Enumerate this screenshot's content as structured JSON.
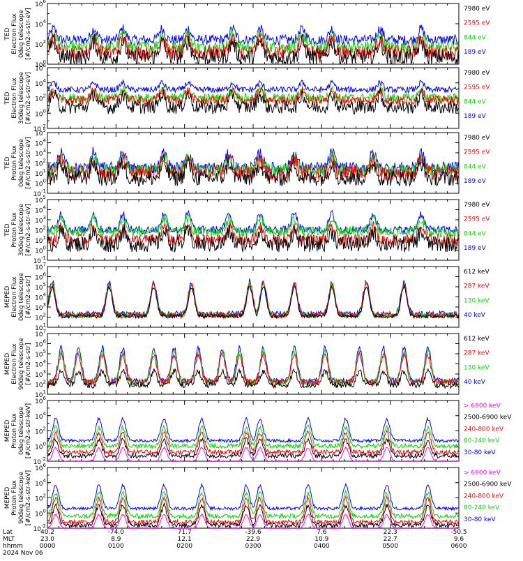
{
  "panel_count": 8,
  "footer": {
    "row_labels": [
      "Lat",
      "MLT",
      "hhmm"
    ],
    "date": "2024 Nov 06",
    "ticks": [
      {
        "lat": "40.2",
        "mlt": "23.0",
        "hhmm": "0000"
      },
      {
        "lat": "-74.0",
        "mlt": "8.9",
        "hhmm": "0100"
      },
      {
        "lat": "71.7",
        "mlt": "12.1",
        "hhmm": "0200"
      },
      {
        "lat": "-39.6",
        "mlt": "22.9",
        "hhmm": "0300"
      },
      {
        "lat": "7.6",
        "mlt": "10.9",
        "hhmm": "0400"
      },
      {
        "lat": "22.3",
        "mlt": "22.7",
        "hhmm": "0500"
      },
      {
        "lat": "-50.5",
        "mlt": "9.6",
        "hhmm": "0600"
      }
    ]
  },
  "colors": {
    "blue": "#0000ff",
    "red": "#ff0000",
    "green": "#00dd00",
    "black": "#000000",
    "magenta": "#ff00ff"
  },
  "chart_data": [
    {
      "type": "line",
      "instrument": "TED",
      "ylabel": [
        "TED",
        "Electron Flux",
        "0deg telescope",
        "[#/cm2-s-str-eV]"
      ],
      "ylog": true,
      "ylim_exp": [
        0,
        6
      ],
      "yticks": [
        {
          "exp": 0,
          "label": "10^0"
        },
        {
          "exp": 2,
          "label": "10^2"
        },
        {
          "exp": 4,
          "label": "10^4"
        },
        {
          "exp": 6,
          "label": "10^6"
        }
      ],
      "legend": [
        {
          "label": "7980 eV",
          "color": "black"
        },
        {
          "label": "2595 eV",
          "color": "red"
        },
        {
          "label": "844 eV",
          "color": "green"
        },
        {
          "label": "189 eV",
          "color": "blue"
        }
      ],
      "series": [
        {
          "name": "189 eV",
          "color": "blue",
          "base": 2.4,
          "level": 3.5,
          "noise": 0.5
        },
        {
          "name": "844 eV",
          "color": "green",
          "base": 1.7,
          "level": 3.0,
          "noise": 0.6
        },
        {
          "name": "2595 eV",
          "color": "red",
          "base": 1.2,
          "level": 2.6,
          "noise": 0.7
        },
        {
          "name": "7980 eV",
          "color": "black",
          "base": 0.7,
          "level": 2.2,
          "noise": 0.8
        }
      ],
      "peaks_hours": [
        0.09,
        0.68,
        1.1,
        1.67,
        2.05,
        2.7,
        3.1,
        3.72,
        4.15,
        4.85,
        5.45
      ]
    },
    {
      "type": "line",
      "instrument": "TED",
      "ylabel": [
        "TED",
        "Electron Flux",
        "30deg telescope",
        "[#/cm2-s-str-eV]"
      ],
      "ylog": true,
      "ylim_exp": [
        -2,
        6
      ],
      "yticks": [
        {
          "exp": -2,
          "label": "10^-2"
        },
        {
          "exp": 0,
          "label": "10^0"
        },
        {
          "exp": 2,
          "label": "10^2"
        },
        {
          "exp": 4,
          "label": "10^4"
        },
        {
          "exp": 6,
          "label": "10^6"
        }
      ],
      "legend": [
        {
          "label": "7980 eV",
          "color": "black"
        },
        {
          "label": "2595 eV",
          "color": "red"
        },
        {
          "label": "844 eV",
          "color": "green"
        },
        {
          "label": "189 eV",
          "color": "blue"
        }
      ],
      "series": [
        {
          "name": "189 eV",
          "color": "blue",
          "base": 3.1,
          "level": 4.0,
          "noise": 0.4
        },
        {
          "name": "844 eV",
          "color": "green",
          "base": 2.0,
          "level": 3.1,
          "noise": 0.6
        },
        {
          "name": "2595 eV",
          "color": "red",
          "base": 1.7,
          "level": 3.0,
          "noise": 0.6
        },
        {
          "name": "7980 eV",
          "color": "black",
          "base": 0.8,
          "level": 2.5,
          "noise": 0.9
        }
      ],
      "peaks_hours": [
        0.09,
        0.68,
        1.1,
        1.67,
        2.05,
        2.7,
        3.1,
        3.72,
        4.15,
        4.85,
        5.45
      ]
    },
    {
      "type": "line",
      "instrument": "TED",
      "ylabel": [
        "TED",
        "Proton Flux",
        "0deg telescope",
        "[#/cm2-s-str-eV]"
      ],
      "ylog": true,
      "ylim_exp": [
        -1,
        5
      ],
      "yticks": [
        {
          "exp": -1,
          "label": "10^-1"
        },
        {
          "exp": 0,
          "label": "10^0"
        },
        {
          "exp": 1,
          "label": "10^1"
        },
        {
          "exp": 2,
          "label": "10^2"
        },
        {
          "exp": 3,
          "label": "10^3"
        },
        {
          "exp": 4,
          "label": "10^4"
        },
        {
          "exp": 5,
          "label": "10^5"
        }
      ],
      "legend": [
        {
          "label": "7980 eV",
          "color": "black"
        },
        {
          "label": "2595 eV",
          "color": "red"
        },
        {
          "label": "844 eV",
          "color": "green"
        },
        {
          "label": "189 eV",
          "color": "blue"
        }
      ],
      "series": [
        {
          "name": "189 eV",
          "color": "blue",
          "base": 1.5,
          "level": 3.0,
          "noise": 0.6
        },
        {
          "name": "844 eV",
          "color": "green",
          "base": 1.3,
          "level": 2.6,
          "noise": 0.6
        },
        {
          "name": "2595 eV",
          "color": "red",
          "base": 1.0,
          "level": 2.4,
          "noise": 0.7
        },
        {
          "name": "7980 eV",
          "color": "black",
          "base": 0.5,
          "level": 2.0,
          "noise": 0.8
        }
      ],
      "peaks_hours": [
        0.2,
        0.67,
        1.1,
        1.7,
        2.05,
        2.65,
        3.1,
        3.6,
        4.15,
        4.75,
        5.45
      ]
    },
    {
      "type": "line",
      "instrument": "TED",
      "ylabel": [
        "TED",
        "Proton Flux",
        "30deg telescope",
        "[#/cm2-s-str-eV]"
      ],
      "ylog": true,
      "ylim_exp": [
        -1,
        5
      ],
      "yticks": [
        {
          "exp": -1,
          "label": "10^-1"
        },
        {
          "exp": 0,
          "label": "10^0"
        },
        {
          "exp": 1,
          "label": "10^1"
        },
        {
          "exp": 2,
          "label": "10^2"
        },
        {
          "exp": 3,
          "label": "10^3"
        },
        {
          "exp": 4,
          "label": "10^4"
        },
        {
          "exp": 5,
          "label": "10^5"
        }
      ],
      "legend": [
        {
          "label": "7980 eV",
          "color": "black"
        },
        {
          "label": "2595 eV",
          "color": "red"
        },
        {
          "label": "844 eV",
          "color": "green"
        },
        {
          "label": "189 eV",
          "color": "blue"
        }
      ],
      "series": [
        {
          "name": "189 eV",
          "color": "blue",
          "base": 2.0,
          "level": 3.6,
          "noise": 0.4
        },
        {
          "name": "844 eV",
          "color": "green",
          "base": 1.8,
          "level": 3.1,
          "noise": 0.5
        },
        {
          "name": "2595 eV",
          "color": "red",
          "base": 1.0,
          "level": 2.3,
          "noise": 0.6
        },
        {
          "name": "7980 eV",
          "color": "black",
          "base": 0.6,
          "level": 1.8,
          "noise": 0.8
        }
      ],
      "peaks_hours": [
        0.2,
        0.67,
        1.1,
        1.7,
        2.05,
        2.65,
        3.1,
        3.6,
        4.15,
        4.75,
        5.45
      ]
    },
    {
      "type": "line",
      "instrument": "MEPED",
      "ylabel": [
        "MEPED",
        "Electron Flux",
        "0deg telescope",
        "[#/cm2-s-str]"
      ],
      "ylog": true,
      "ylim_exp": [
        1,
        7
      ],
      "yticks": [
        {
          "exp": 1,
          "label": "10^1"
        },
        {
          "exp": 2,
          "label": "10^2"
        },
        {
          "exp": 3,
          "label": "10^3"
        },
        {
          "exp": 4,
          "label": "10^4"
        },
        {
          "exp": 5,
          "label": "10^5"
        },
        {
          "exp": 6,
          "label": "10^6"
        },
        {
          "exp": 7,
          "label": "10^7"
        }
      ],
      "legend": [
        {
          "label": "612 keV",
          "color": "black"
        },
        {
          "label": "287 keV",
          "color": "red"
        },
        {
          "label": "130 keV",
          "color": "green"
        },
        {
          "label": "40 keV",
          "color": "blue"
        }
      ],
      "series": [
        {
          "name": "40 keV",
          "color": "blue",
          "base": 2.3,
          "level": 5.5,
          "noise": 0.3
        },
        {
          "name": "130 keV",
          "color": "green",
          "base": 2.2,
          "level": 5.3,
          "noise": 0.3
        },
        {
          "name": "287 keV",
          "color": "red",
          "base": 2.2,
          "level": 5.2,
          "noise": 0.3
        },
        {
          "name": "612 keV",
          "color": "black",
          "base": 2.1,
          "level": 5.0,
          "noise": 0.2
        }
      ],
      "peaks_hours": [
        0.07,
        0.9,
        1.55,
        2.1,
        2.95,
        3.15,
        3.6,
        4.15,
        4.65,
        5.2
      ]
    },
    {
      "type": "line",
      "instrument": "MEPED",
      "ylabel": [
        "MEPED",
        "Electron Flux",
        "90deg telescope",
        "[#/cm2-s-str]"
      ],
      "ylog": true,
      "ylim_exp": [
        1,
        7
      ],
      "yticks": [
        {
          "exp": 1,
          "label": "10^1"
        },
        {
          "exp": 2,
          "label": "10^2"
        },
        {
          "exp": 3,
          "label": "10^3"
        },
        {
          "exp": 4,
          "label": "10^4"
        },
        {
          "exp": 5,
          "label": "10^5"
        },
        {
          "exp": 6,
          "label": "10^6"
        },
        {
          "exp": 7,
          "label": "10^7"
        }
      ],
      "legend": [
        {
          "label": "612 keV",
          "color": "black"
        },
        {
          "label": "287 keV",
          "color": "red"
        },
        {
          "label": "130 keV",
          "color": "green"
        },
        {
          "label": "40 keV",
          "color": "blue"
        }
      ],
      "series": [
        {
          "name": "40 keV",
          "color": "blue",
          "base": 2.3,
          "level": 5.6,
          "noise": 0.3
        },
        {
          "name": "130 keV",
          "color": "green",
          "base": 2.2,
          "level": 5.2,
          "noise": 0.3
        },
        {
          "name": "287 keV",
          "color": "red",
          "base": 2.2,
          "level": 4.9,
          "noise": 0.3
        },
        {
          "name": "612 keV",
          "color": "black",
          "base": 1.9,
          "level": 3.3,
          "noise": 0.3
        }
      ],
      "peaks_hours": [
        0.2,
        0.45,
        0.8,
        1.1,
        1.55,
        1.85,
        2.2,
        2.55,
        2.8,
        3.15,
        3.6,
        4.05,
        4.55,
        4.9,
        5.2,
        5.55
      ]
    },
    {
      "type": "line",
      "instrument": "MEPED",
      "ylabel": [
        "MEPED",
        "Proton Flux",
        "0deg telescope",
        "[#/cm2-s-str-keV]"
      ],
      "ylog": true,
      "ylim_exp": [
        -2,
        6
      ],
      "yticks": [
        {
          "exp": -2,
          "label": "10^-2"
        },
        {
          "exp": 0,
          "label": "10^0"
        },
        {
          "exp": 2,
          "label": "10^2"
        },
        {
          "exp": 4,
          "label": "10^4"
        },
        {
          "exp": 6,
          "label": "10^6"
        }
      ],
      "legend": [
        {
          "label": "> 6900 keV",
          "color": "magenta"
        },
        {
          "label": "2500-6900 keV",
          "color": "black"
        },
        {
          "label": "240-800 keV",
          "color": "red"
        },
        {
          "label": "80-240 keV",
          "color": "green"
        },
        {
          "label": "30-80 keV",
          "color": "blue"
        }
      ],
      "series": [
        {
          "name": "30-80 keV",
          "color": "blue",
          "base": 0.7,
          "level": 3.6,
          "noise": 0.2
        },
        {
          "name": "80-240 keV",
          "color": "green",
          "base": 0.0,
          "level": 2.5,
          "noise": 0.3
        },
        {
          "name": "240-800 keV",
          "color": "red",
          "base": -0.8,
          "level": 1.8,
          "noise": 0.3
        },
        {
          "name": "2500-6900 keV",
          "color": "black",
          "base": -1.3,
          "level": 0.8,
          "noise": 0.3
        },
        {
          "name": "> 6900 keV",
          "color": "magenta",
          "base": -2.0,
          "level": -0.2,
          "noise": 0.1
        }
      ],
      "peaks_hours": [
        0.12,
        0.75,
        1.1,
        1.7,
        2.25,
        2.9,
        3.1,
        3.8,
        4.35,
        4.95,
        5.55
      ]
    },
    {
      "type": "line",
      "instrument": "MEPED",
      "ylabel": [
        "MEPED",
        "Proton Flux",
        "90deg telescope",
        "[#/cm2-s-str-keV]"
      ],
      "ylog": true,
      "ylim_exp": [
        -2,
        6
      ],
      "yticks": [
        {
          "exp": -2,
          "label": "10^-2"
        },
        {
          "exp": 0,
          "label": "10^0"
        },
        {
          "exp": 2,
          "label": "10^2"
        },
        {
          "exp": 4,
          "label": "10^4"
        },
        {
          "exp": 6,
          "label": "10^6"
        }
      ],
      "legend": [
        {
          "label": "> 6900 keV",
          "color": "magenta"
        },
        {
          "label": "2500-6900 keV",
          "color": "black"
        },
        {
          "label": "240-800 keV",
          "color": "red"
        },
        {
          "label": "80-240 keV",
          "color": "green"
        },
        {
          "label": "30-80 keV",
          "color": "blue"
        }
      ],
      "series": [
        {
          "name": "30-80 keV",
          "color": "blue",
          "base": 0.6,
          "level": 3.7,
          "noise": 0.2
        },
        {
          "name": "80-240 keV",
          "color": "green",
          "base": -0.4,
          "level": 2.7,
          "noise": 0.3
        },
        {
          "name": "240-800 keV",
          "color": "red",
          "base": -1.2,
          "level": 2.0,
          "noise": 0.3
        },
        {
          "name": "2500-6900 keV",
          "color": "black",
          "base": -1.6,
          "level": 1.0,
          "noise": 0.3
        },
        {
          "name": "> 6900 keV",
          "color": "magenta",
          "base": -2.0,
          "level": -0.2,
          "noise": 0.1
        }
      ],
      "peaks_hours": [
        0.12,
        0.75,
        1.1,
        1.7,
        2.25,
        2.9,
        3.1,
        3.8,
        4.35,
        4.95,
        5.55
      ]
    }
  ]
}
